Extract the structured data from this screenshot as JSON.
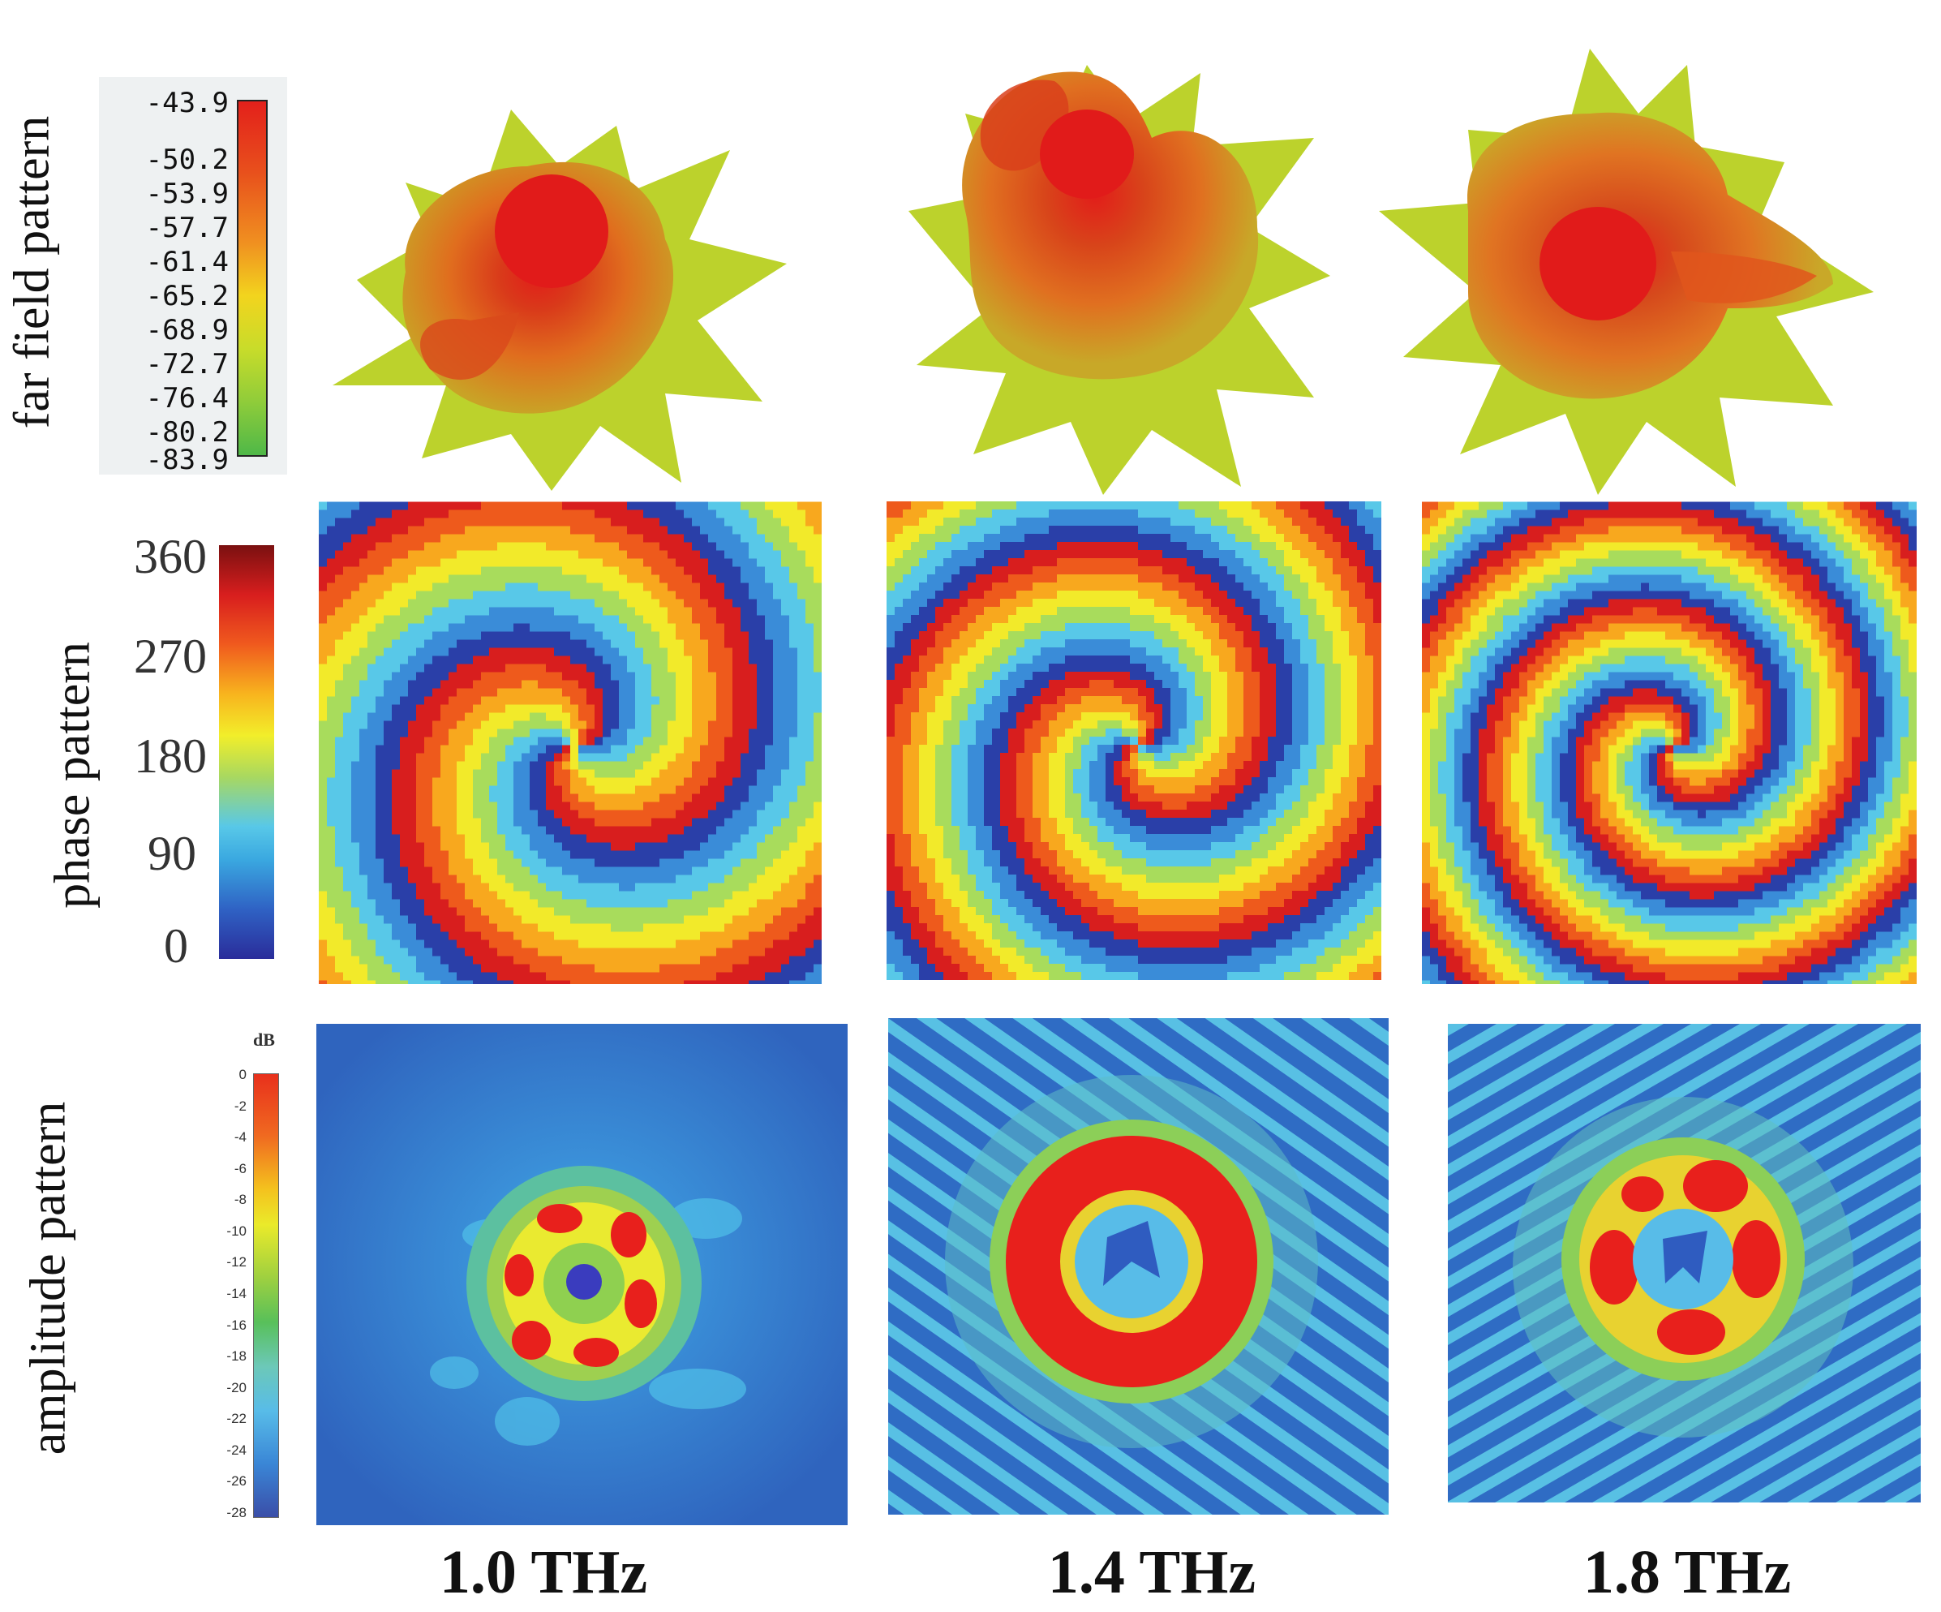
{
  "row_labels": {
    "far_field": "far field pattern",
    "phase": "phase pattern",
    "amplitude": "amplitude pattern"
  },
  "far_field_colorbar": {
    "ticks": [
      "-43.9",
      "-50.2",
      "-53.9",
      "-57.7",
      "-61.4",
      "-65.2",
      "-68.9",
      "-72.7",
      "-76.4",
      "-80.2",
      "-83.9"
    ]
  },
  "phase_colorbar": {
    "ticks": [
      "360",
      "270",
      "180",
      "90",
      "0"
    ]
  },
  "amplitude_colorbar": {
    "unit": "dB",
    "ticks": [
      "0",
      "-2",
      "-4",
      "-6",
      "-8",
      "-10",
      "-12",
      "-14",
      "-16",
      "-18",
      "-20",
      "-22",
      "-24",
      "-26",
      "-28"
    ]
  },
  "frequencies": [
    "1.0 THz",
    "1.4 THz",
    "1.8 THz"
  ],
  "colors": {
    "far_field_core": "#e2231a",
    "far_field_body": "#e0661c",
    "far_field_spikes": "#b9d12a",
    "amp_background": "#2e6fc2",
    "amp_ring": "#e8201c"
  }
}
